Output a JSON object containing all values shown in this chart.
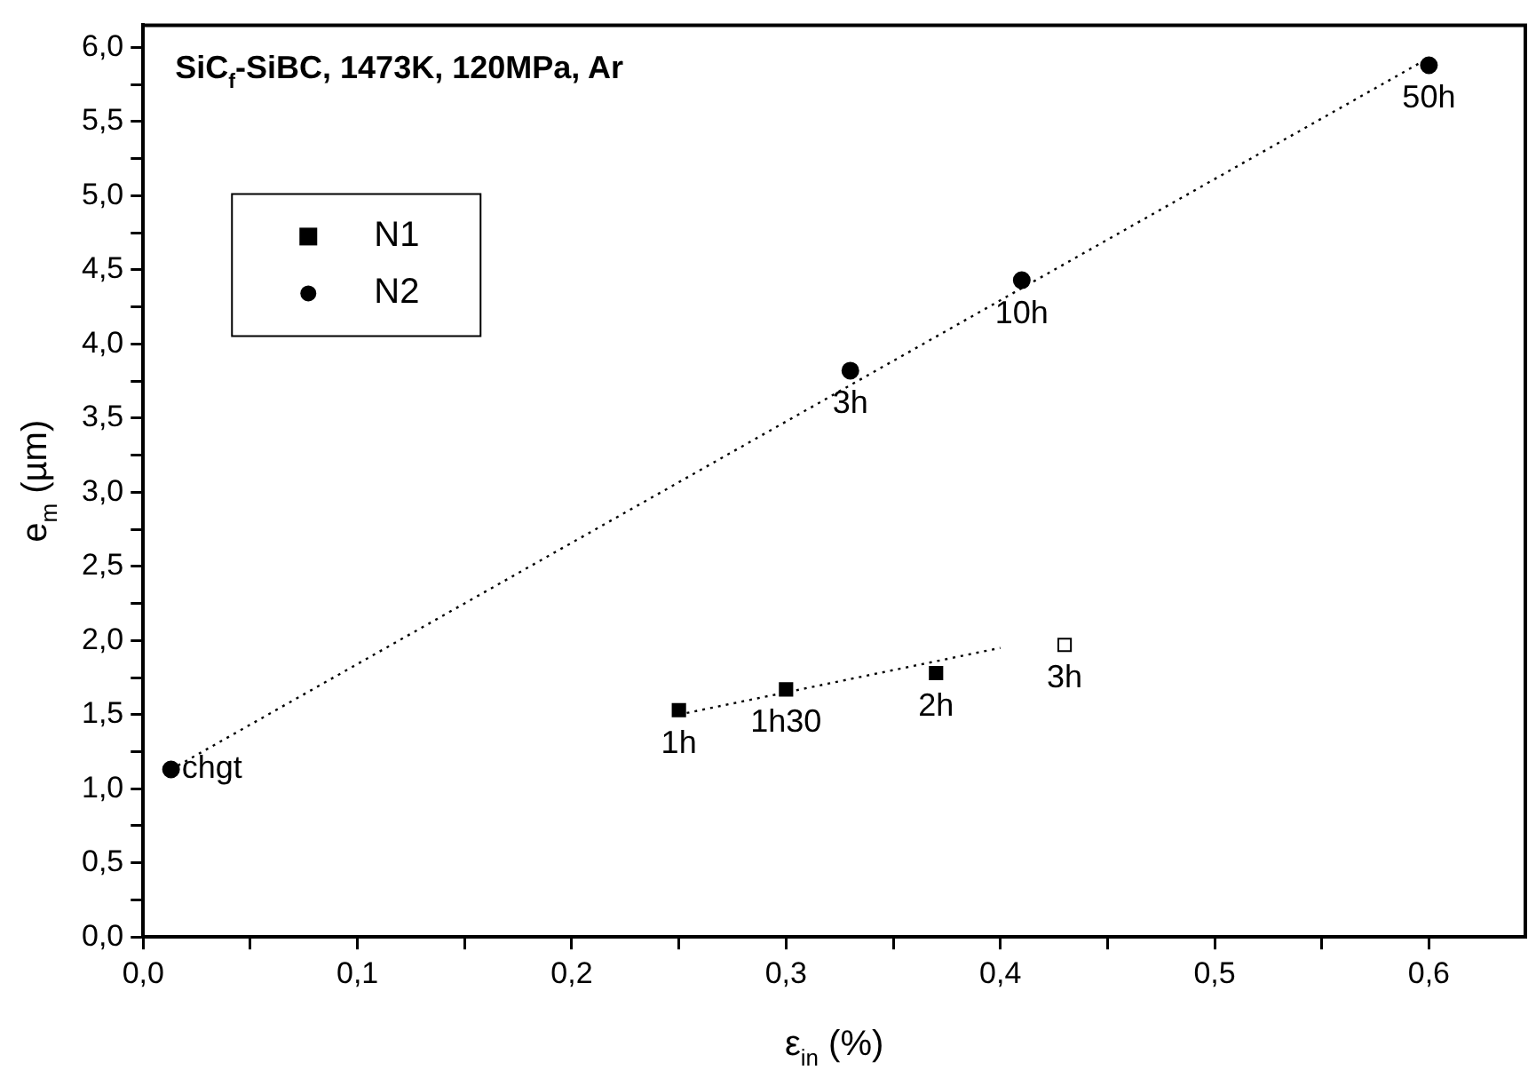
{
  "chart_data": {
    "type": "scatter",
    "title": "SiC$_{f}$-SiBC, 1473K, 120MPa, Ar",
    "xlabel": "ε$_{in}$ (%)",
    "ylabel": "e$_{m}$ (µm)",
    "xlim": [
      0,
      0.645
    ],
    "ylim": [
      0,
      6.15
    ],
    "xticks": [
      {
        "value": 0,
        "label": "0,0"
      },
      {
        "value": 0.05,
        "label": null
      },
      {
        "value": 0.1,
        "label": "0,1"
      },
      {
        "value": 0.15,
        "label": null
      },
      {
        "value": 0.2,
        "label": "0,2"
      },
      {
        "value": 0.25,
        "label": null
      },
      {
        "value": 0.3,
        "label": "0,3"
      },
      {
        "value": 0.35,
        "label": null
      },
      {
        "value": 0.4,
        "label": "0,4"
      },
      {
        "value": 0.45,
        "label": null
      },
      {
        "value": 0.5,
        "label": "0,5"
      },
      {
        "value": 0.55,
        "label": null
      },
      {
        "value": 0.6,
        "label": "0,6"
      }
    ],
    "yticks": [
      {
        "value": 0,
        "label": "0,0"
      },
      {
        "value": 0.25,
        "label": null
      },
      {
        "value": 0.5,
        "label": "0,5"
      },
      {
        "value": 0.75,
        "label": null
      },
      {
        "value": 1,
        "label": "1,0"
      },
      {
        "value": 1.25,
        "label": null
      },
      {
        "value": 1.5,
        "label": "1,5"
      },
      {
        "value": 1.75,
        "label": null
      },
      {
        "value": 2,
        "label": "2,0"
      },
      {
        "value": 2.25,
        "label": null
      },
      {
        "value": 2.5,
        "label": "2,5"
      },
      {
        "value": 2.75,
        "label": null
      },
      {
        "value": 3,
        "label": "3,0"
      },
      {
        "value": 3.25,
        "label": null
      },
      {
        "value": 3.5,
        "label": "3,5"
      },
      {
        "value": 3.75,
        "label": null
      },
      {
        "value": 4,
        "label": "4,0"
      },
      {
        "value": 4.25,
        "label": null
      },
      {
        "value": 4.5,
        "label": "4,5"
      },
      {
        "value": 4.75,
        "label": null
      },
      {
        "value": 5,
        "label": "5,0"
      },
      {
        "value": 5.25,
        "label": null
      },
      {
        "value": 5.5,
        "label": "5,5"
      },
      {
        "value": 5.75,
        "label": null
      },
      {
        "value": 6,
        "label": "6,0"
      }
    ],
    "grid": false,
    "legend": "top left",
    "series": [
      {
        "name": "N1",
        "type": "scatter",
        "marker": "square",
        "color": "#000000",
        "x": [
          0.25,
          0.3,
          0.37
        ],
        "values": [
          1.53,
          1.67,
          1.78
        ]
      },
      {
        "name": "N2",
        "type": "scatter",
        "marker": "circle",
        "color": "#000000",
        "x": [
          0.013,
          0.33,
          0.41,
          0.6
        ],
        "values": [
          1.13,
          3.82,
          4.43,
          5.88
        ]
      },
      {
        "type": "scatter",
        "marker": "square",
        "color": "#ffffff",
        "x": [
          0.43
        ],
        "values": [
          1.97
        ]
      },
      {
        "type": "line",
        "marker": "none",
        "line_style": "dotted",
        "color": "#000000",
        "x": [
          0.013,
          0.6
        ],
        "values": [
          1.13,
          5.93
        ]
      },
      {
        "type": "line",
        "marker": "none",
        "line_style": "dotted",
        "color": "#000000",
        "x": [
          0.25,
          0.4
        ],
        "values": [
          1.5,
          1.95
        ]
      }
    ],
    "annotations": [
      {
        "text": "chgt",
        "x": 0.013,
        "y": 1.13
      },
      {
        "text": "1h",
        "x": 0.25,
        "y": 1.53
      },
      {
        "text": "1h30",
        "x": 0.3,
        "y": 1.67
      },
      {
        "text": "2h",
        "x": 0.37,
        "y": 1.78
      },
      {
        "text": "3h",
        "x": 0.43,
        "y": 1.97
      },
      {
        "text": "3h",
        "x": 0.33,
        "y": 3.82
      },
      {
        "text": "10h",
        "x": 0.41,
        "y": 4.43
      },
      {
        "text": "50h",
        "x": 0.6,
        "y": 5.88
      }
    ]
  }
}
